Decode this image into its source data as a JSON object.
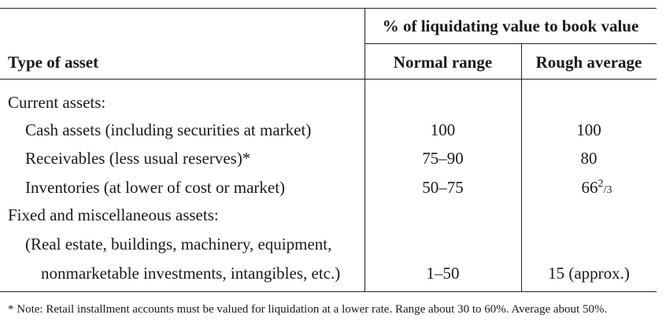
{
  "table": {
    "header_group": "% of liquidating value to book value",
    "col_type": "Type of asset",
    "col_range": "Normal range",
    "col_avg": "Rough average",
    "rows": [
      {
        "label": "Current assets:",
        "range": "",
        "avg": ""
      },
      {
        "label": "Cash assets (including securities at market)",
        "range": "100",
        "avg": "100"
      },
      {
        "label": "Receivables (less usual reserves)*",
        "range": "75–90",
        "avg": "80"
      },
      {
        "label": "Inventories (at lower of cost or market)",
        "range": "50–75",
        "avg_whole": "66",
        "avg_num": "2",
        "avg_den": "3"
      },
      {
        "label": "Fixed and miscellaneous assets:",
        "range": "",
        "avg": ""
      },
      {
        "label": "(Real estate, buildings, machinery, equipment,",
        "range": "",
        "avg": ""
      },
      {
        "label": "nonmarketable investments, intangibles, etc.)",
        "range": "1–50",
        "avg": "15 (approx.)"
      }
    ]
  },
  "footnote": "* Note: Retail installment accounts must be valued for liquidation at a lower rate. Range about 30 to 60%. Average about 50%."
}
